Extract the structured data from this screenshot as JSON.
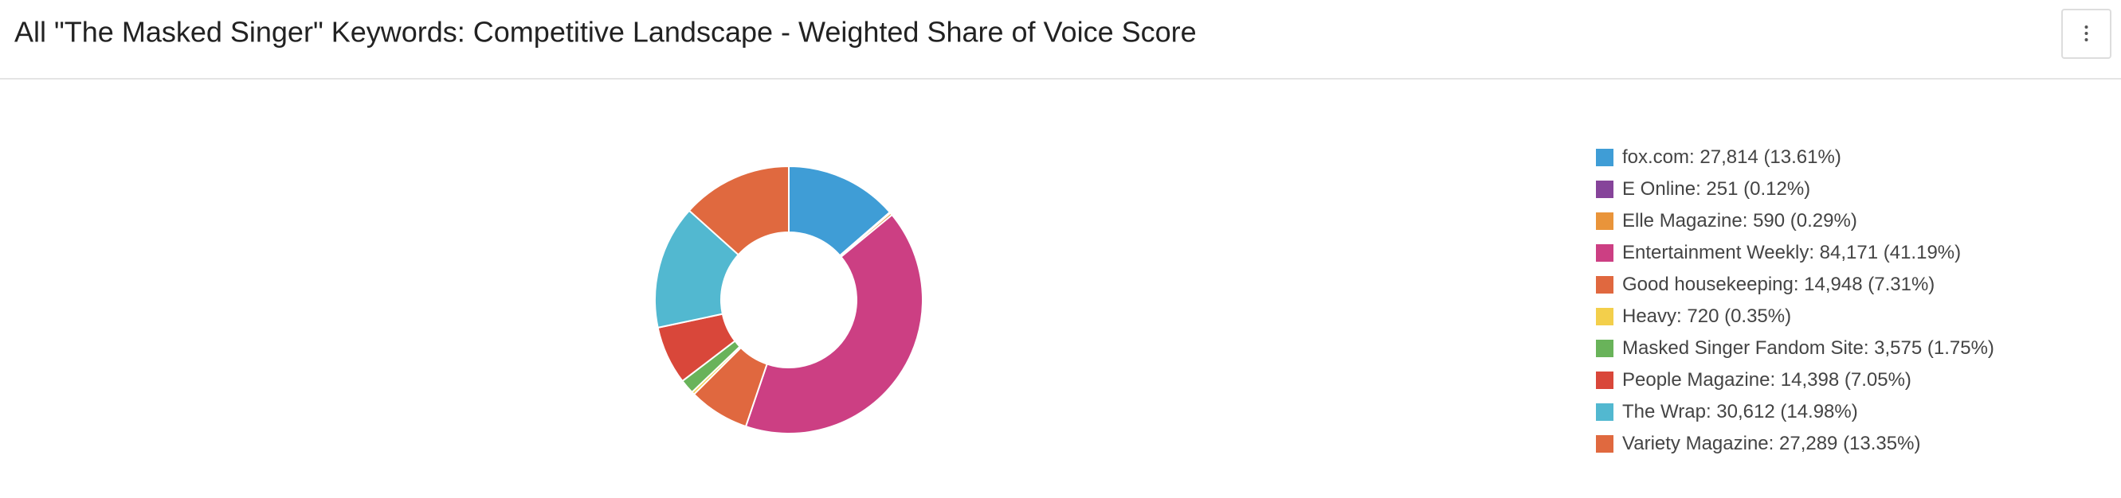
{
  "chart_data": {
    "type": "donut",
    "title": "All \"The Masked Singer\" Keywords: Competitive Landscape - Weighted Share of Voice Score",
    "categories": [
      "fox.com",
      "E Online",
      "Elle Magazine",
      "Entertainment Weekly",
      "Good housekeeping",
      "Heavy",
      "Masked Singer Fandom Site",
      "People Magazine",
      "The Wrap",
      "Variety Magazine"
    ],
    "values": [
      27814,
      251,
      590,
      84171,
      14948,
      720,
      3575,
      14398,
      30612,
      27289
    ],
    "value_labels": [
      ": 27,814 (13.61%)",
      ": 251 (0.12%)",
      ": 590 (0.29%)",
      ": 84,171 (41.19%)",
      ": 14,948 (7.31%)",
      ": 720 (0.35%)",
      ": 3,575 (1.75%)",
      ": 14,398 (7.05%)",
      ": 30,612 (14.98%)",
      ": 27,289 (13.35%)"
    ],
    "colors": [
      "#3f9dd6",
      "#86449a",
      "#e9943a",
      "#cc3f83",
      "#e0683f",
      "#f3cf4b",
      "#69b35a",
      "#d9473a",
      "#52b8d0",
      "#e0693f"
    ],
    "legend": "right"
  }
}
